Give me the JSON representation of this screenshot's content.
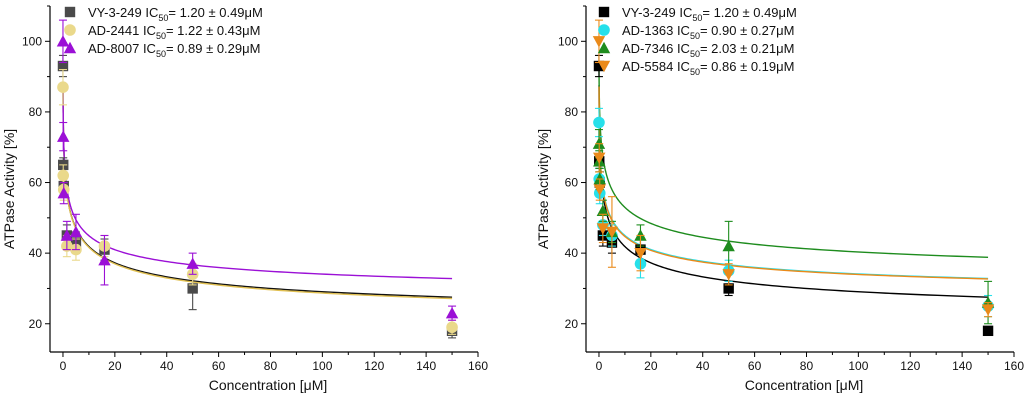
{
  "chart_data": [
    {
      "type": "scatter",
      "panel": "left",
      "xlabel": "Concentration [μM]",
      "ylabel": "ATPase Activity [%]",
      "xlim": [
        -5,
        160
      ],
      "ylim": [
        12,
        110
      ],
      "xticks": [
        0,
        20,
        40,
        60,
        80,
        100,
        120,
        140,
        160
      ],
      "yticks": [
        20,
        40,
        60,
        80,
        100
      ],
      "legend_position": "top-left",
      "series": [
        {
          "name": "VY-3-249",
          "ic50_label": "IC",
          "ic50_sub": "50",
          "ic50_value": "= 1.20 ± 0.49μM",
          "marker": "square",
          "color": "#4a4a4a",
          "fit_color": "#111111",
          "fit": {
            "top": 100,
            "bottom": 18,
            "ic50": 1.2,
            "hill": 0.42
          },
          "points": [
            {
              "x": 0,
              "y": 93,
              "err": 3
            },
            {
              "x": 0.1,
              "y": 65,
              "err": 2
            },
            {
              "x": 0.3,
              "y": 59,
              "err": 3
            },
            {
              "x": 1.5,
              "y": 45,
              "err": 3
            },
            {
              "x": 5,
              "y": 43,
              "err": 3
            },
            {
              "x": 16,
              "y": 41,
              "err": 3
            },
            {
              "x": 50,
              "y": 30,
              "err": 6
            },
            {
              "x": 150,
              "y": 18,
              "err": 2
            }
          ]
        },
        {
          "name": "AD-2441",
          "ic50_label": "IC",
          "ic50_sub": "50",
          "ic50_value": "= 1.22 ± 0.43μM",
          "marker": "circle",
          "color": "#ead98b",
          "fit_color": "#e0bf50",
          "fit": {
            "top": 100,
            "bottom": 17.5,
            "ic50": 1.22,
            "hill": 0.42
          },
          "points": [
            {
              "x": 0,
              "y": 87,
              "err": 5
            },
            {
              "x": 0.1,
              "y": 62,
              "err": 3
            },
            {
              "x": 0.3,
              "y": 58,
              "err": 3
            },
            {
              "x": 1.5,
              "y": 42,
              "err": 3
            },
            {
              "x": 5,
              "y": 41,
              "err": 3
            },
            {
              "x": 16,
              "y": 42,
              "err": 3
            },
            {
              "x": 50,
              "y": 34,
              "err": 3
            },
            {
              "x": 150,
              "y": 19,
              "err": 2
            }
          ]
        },
        {
          "name": "AD-8007",
          "ic50_label": "IC",
          "ic50_sub": "50",
          "ic50_value": "= 0.89 ± 0.29μM",
          "marker": "triangle-up",
          "color": "#9b10d6",
          "fit_color": "#9b10d6",
          "fit": {
            "top": 100,
            "bottom": 25,
            "ic50": 0.89,
            "hill": 0.42
          },
          "points": [
            {
              "x": 0,
              "y": 100,
              "err": 6
            },
            {
              "x": 0.1,
              "y": 73,
              "err": 4
            },
            {
              "x": 0.3,
              "y": 57,
              "err": 3
            },
            {
              "x": 1.5,
              "y": 45,
              "err": 4
            },
            {
              "x": 5,
              "y": 46,
              "err": 5
            },
            {
              "x": 16,
              "y": 38,
              "err": 7
            },
            {
              "x": 50,
              "y": 37,
              "err": 3
            },
            {
              "x": 150,
              "y": 23,
              "err": 2
            }
          ]
        }
      ]
    },
    {
      "type": "scatter",
      "panel": "right",
      "xlabel": "Concentration [μM]",
      "ylabel": "ATPase Activity [%]",
      "xlim": [
        -5,
        160
      ],
      "ylim": [
        12,
        110
      ],
      "xticks": [
        0,
        20,
        40,
        60,
        80,
        100,
        120,
        140,
        160
      ],
      "yticks": [
        20,
        40,
        60,
        80,
        100
      ],
      "legend_position": "top-left",
      "series": [
        {
          "name": "VY-3-249",
          "ic50_label": "IC",
          "ic50_sub": "50",
          "ic50_value": "= 1.20 ± 0.49μM",
          "marker": "square",
          "color": "#000000",
          "fit_color": "#000000",
          "fit": {
            "top": 100,
            "bottom": 18,
            "ic50": 1.2,
            "hill": 0.42
          },
          "points": [
            {
              "x": 0,
              "y": 93,
              "err": 3
            },
            {
              "x": 0.1,
              "y": 66,
              "err": 2
            },
            {
              "x": 0.3,
              "y": 60,
              "err": 3
            },
            {
              "x": 1.5,
              "y": 45,
              "err": 3
            },
            {
              "x": 5,
              "y": 43,
              "err": 3
            },
            {
              "x": 16,
              "y": 41,
              "err": 3
            },
            {
              "x": 50,
              "y": 30,
              "err": 2
            },
            {
              "x": 150,
              "y": 18,
              "err": 1
            }
          ]
        },
        {
          "name": "AD-1363",
          "ic50_label": "IC",
          "ic50_sub": "50",
          "ic50_value": "= 0.90 ± 0.27μM",
          "marker": "circle",
          "color": "#26e0ea",
          "fit_color": "#26e0ea",
          "fit": {
            "top": 100,
            "bottom": 25,
            "ic50": 0.9,
            "hill": 0.42
          },
          "points": [
            {
              "x": 0,
              "y": 77,
              "err": 4
            },
            {
              "x": 0.1,
              "y": 61,
              "err": 3
            },
            {
              "x": 0.3,
              "y": 57,
              "err": 3
            },
            {
              "x": 1.5,
              "y": 48,
              "err": 3
            },
            {
              "x": 5,
              "y": 45,
              "err": 3
            },
            {
              "x": 16,
              "y": 37,
              "err": 4
            },
            {
              "x": 50,
              "y": 35,
              "err": 3
            },
            {
              "x": 150,
              "y": 25,
              "err": 3
            }
          ]
        },
        {
          "name": "AD-7346",
          "ic50_label": "IC",
          "ic50_sub": "50",
          "ic50_value": "= 2.03 ± 0.21μM",
          "marker": "triangle-up",
          "color": "#1e8c1e",
          "fit_color": "#1e8c1e",
          "fit": {
            "top": 100,
            "bottom": 30,
            "ic50": 2.03,
            "hill": 0.45
          },
          "points": [
            {
              "x": 0,
              "y": 71,
              "err": 4
            },
            {
              "x": 0.1,
              "y": 66,
              "err": 3
            },
            {
              "x": 0.3,
              "y": 61,
              "err": 3
            },
            {
              "x": 1.5,
              "y": 52,
              "err": 3
            },
            {
              "x": 5,
              "y": 46,
              "err": 3
            },
            {
              "x": 16,
              "y": 45,
              "err": 3
            },
            {
              "x": 50,
              "y": 42,
              "err": 7
            },
            {
              "x": 150,
              "y": 26,
              "err": 6
            }
          ]
        },
        {
          "name": "AD-5584",
          "ic50_label": "IC",
          "ic50_sub": "50",
          "ic50_value": "= 0.86 ± 0.19μM",
          "marker": "triangle-down",
          "color": "#ea8a1a",
          "fit_color": "#ea8a1a",
          "fit": {
            "top": 100,
            "bottom": 25,
            "ic50": 0.86,
            "hill": 0.42
          },
          "points": [
            {
              "x": 0,
              "y": 100,
              "err": 6
            },
            {
              "x": 0.1,
              "y": 67,
              "err": 4
            },
            {
              "x": 0.3,
              "y": 58,
              "err": 3
            },
            {
              "x": 1.5,
              "y": 47,
              "err": 4
            },
            {
              "x": 5,
              "y": 46,
              "err": 10
            },
            {
              "x": 16,
              "y": 40,
              "err": 5
            },
            {
              "x": 50,
              "y": 34,
              "err": 3
            },
            {
              "x": 150,
              "y": 24,
              "err": 2
            }
          ]
        }
      ]
    }
  ]
}
